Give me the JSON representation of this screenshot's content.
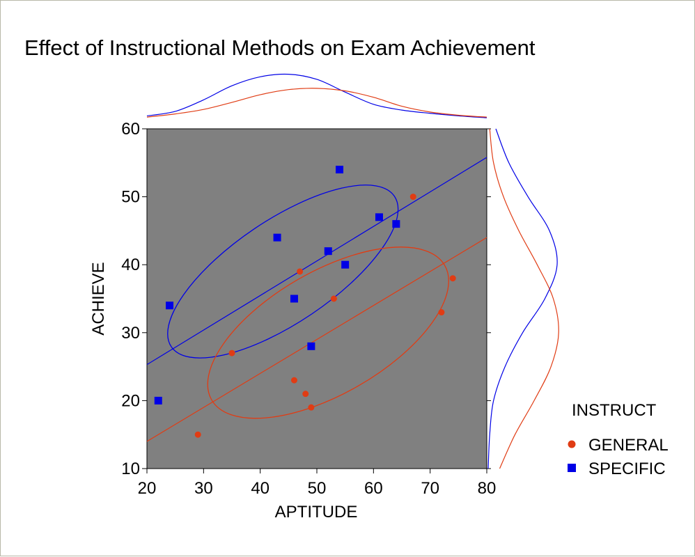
{
  "chart_data": {
    "type": "scatter",
    "title": "Effect of Instructional Methods on Exam Achievement",
    "xlabel": "APTITUDE",
    "ylabel": "ACHIEVE",
    "xlim": [
      20,
      80
    ],
    "ylim": [
      10,
      60
    ],
    "xticks": [
      "20",
      "30",
      "40",
      "50",
      "60",
      "70",
      "80"
    ],
    "yticks": [
      "10",
      "20",
      "30",
      "40",
      "50",
      "60"
    ],
    "grid": false,
    "plot_background": "#808080",
    "legend": {
      "title": "INSTRUCT",
      "placement": "right",
      "entries": [
        "GENERAL",
        "SPECIFIC"
      ]
    },
    "series": [
      {
        "name": "GENERAL",
        "marker": "circle",
        "color": "#e03c14",
        "points": [
          {
            "x": 29,
            "y": 15
          },
          {
            "x": 35,
            "y": 27
          },
          {
            "x": 46,
            "y": 23
          },
          {
            "x": 47,
            "y": 39
          },
          {
            "x": 48,
            "y": 21
          },
          {
            "x": 49,
            "y": 19
          },
          {
            "x": 53,
            "y": 35
          },
          {
            "x": 67,
            "y": 50
          },
          {
            "x": 72,
            "y": 33
          },
          {
            "x": 74,
            "y": 38
          }
        ],
        "regression_line": [
          {
            "x": 20,
            "y": 14
          },
          {
            "x": 80,
            "y": 44
          }
        ]
      },
      {
        "name": "SPECIFIC",
        "marker": "square",
        "color": "#0000e6",
        "points": [
          {
            "x": 22,
            "y": 20
          },
          {
            "x": 24,
            "y": 34
          },
          {
            "x": 43,
            "y": 44
          },
          {
            "x": 46,
            "y": 35
          },
          {
            "x": 49,
            "y": 28
          },
          {
            "x": 52,
            "y": 42
          },
          {
            "x": 54,
            "y": 54
          },
          {
            "x": 55,
            "y": 40
          },
          {
            "x": 61,
            "y": 47
          },
          {
            "x": 64,
            "y": 46
          }
        ],
        "regression_line": [
          {
            "x": 20,
            "y": 25.3
          },
          {
            "x": 80,
            "y": 55.8
          }
        ]
      }
    ],
    "marginal_densities": {
      "x": [
        {
          "series": "SPECIFIC",
          "color": "#0000e6",
          "points": [
            [
              20,
              0.05
            ],
            [
              25,
              0.12
            ],
            [
              30,
              0.3
            ],
            [
              35,
              0.52
            ],
            [
              40,
              0.66
            ],
            [
              45,
              0.7
            ],
            [
              50,
              0.62
            ],
            [
              55,
              0.42
            ],
            [
              60,
              0.23
            ],
            [
              65,
              0.14
            ],
            [
              70,
              0.09
            ],
            [
              75,
              0.05
            ],
            [
              80,
              0.02
            ]
          ]
        },
        {
          "series": "GENERAL",
          "color": "#e03c14",
          "points": [
            [
              20,
              0.03
            ],
            [
              25,
              0.08
            ],
            [
              30,
              0.15
            ],
            [
              35,
              0.26
            ],
            [
              40,
              0.38
            ],
            [
              45,
              0.46
            ],
            [
              50,
              0.48
            ],
            [
              55,
              0.44
            ],
            [
              60,
              0.34
            ],
            [
              65,
              0.2
            ],
            [
              70,
              0.11
            ],
            [
              75,
              0.06
            ],
            [
              80,
              0.03
            ]
          ]
        }
      ],
      "y": [
        {
          "series": "SPECIFIC",
          "color": "#0000e6",
          "points": [
            [
              10,
              0.0
            ],
            [
              15,
              0.02
            ],
            [
              20,
              0.07
            ],
            [
              25,
              0.22
            ],
            [
              30,
              0.45
            ],
            [
              35,
              0.74
            ],
            [
              40,
              0.9
            ],
            [
              45,
              0.8
            ],
            [
              50,
              0.52
            ],
            [
              55,
              0.27
            ],
            [
              60,
              0.1
            ]
          ]
        },
        {
          "series": "GENERAL",
          "color": "#e03c14",
          "points": [
            [
              10,
              0.15
            ],
            [
              15,
              0.35
            ],
            [
              20,
              0.6
            ],
            [
              25,
              0.82
            ],
            [
              30,
              0.92
            ],
            [
              35,
              0.85
            ],
            [
              40,
              0.64
            ],
            [
              45,
              0.4
            ],
            [
              50,
              0.2
            ],
            [
              55,
              0.07
            ],
            [
              60,
              0.02
            ]
          ]
        }
      ]
    },
    "confidence_ellipses": [
      {
        "series": "SPECIFIC",
        "color": "#0000e6",
        "center": {
          "x": 44,
          "y": 39
        },
        "semi_axes": {
          "x": 33,
          "y": 10.5
        },
        "angle_deg": -34
      },
      {
        "series": "GENERAL",
        "color": "#e03c14",
        "center": {
          "x": 52,
          "y": 30
        },
        "semi_axes": {
          "x": 33,
          "y": 12.5
        },
        "angle_deg": -30
      }
    ]
  }
}
